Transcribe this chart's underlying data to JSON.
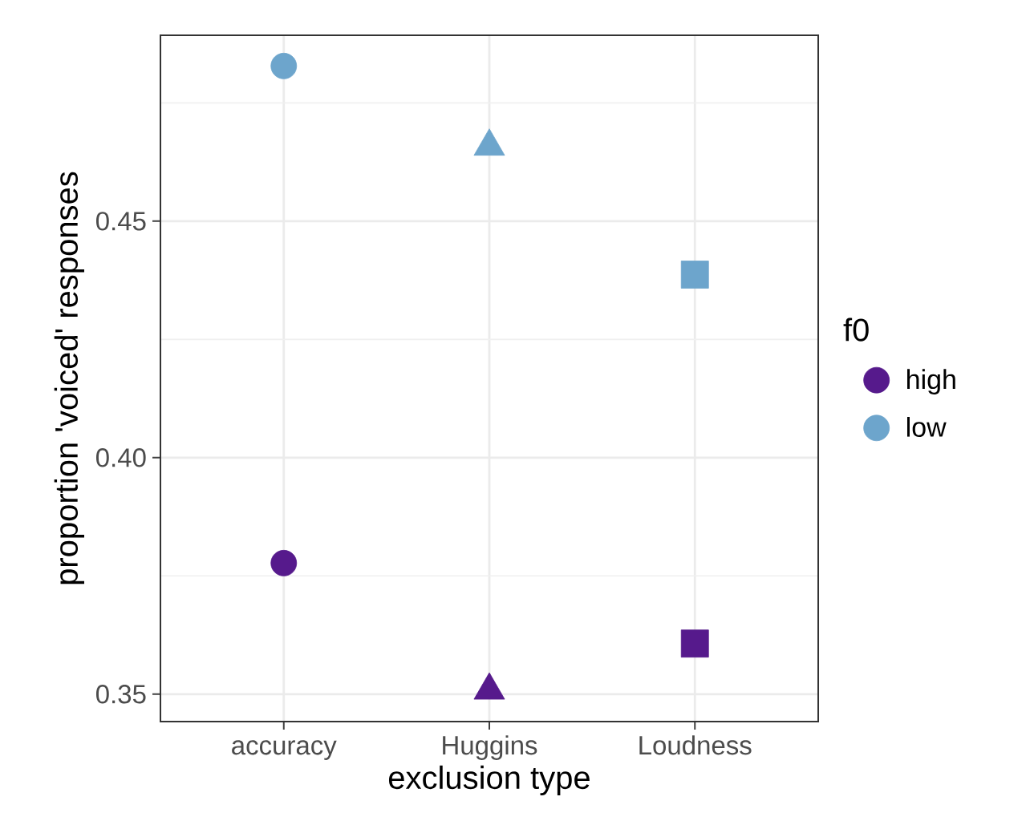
{
  "chart_data": {
    "type": "scatter",
    "xlabel": "exclusion type",
    "ylabel": "proportion 'voiced' responses",
    "legend_title": "f0",
    "categories": [
      "accuracy",
      "Huggins",
      "Loudness"
    ],
    "series": [
      {
        "name": "high",
        "color": "#561a8c",
        "values": [
          0.3777,
          0.3508,
          0.3607
        ]
      },
      {
        "name": "low",
        "color": "#6da5cc",
        "values": [
          0.4828,
          0.4658,
          0.4387
        ]
      }
    ],
    "marker": [
      "circle",
      "triangle",
      "square"
    ],
    "ylim": [
      0.3442,
      0.4893
    ],
    "yticks": [
      {
        "value": 0.35,
        "label": "0.35"
      },
      {
        "value": 0.375,
        "label": null
      },
      {
        "value": 0.4,
        "label": "0.40"
      },
      {
        "value": 0.425,
        "label": null
      },
      {
        "value": 0.45,
        "label": "0.45"
      },
      {
        "value": 0.475,
        "label": null
      }
    ],
    "grid": true,
    "legend": "right"
  }
}
